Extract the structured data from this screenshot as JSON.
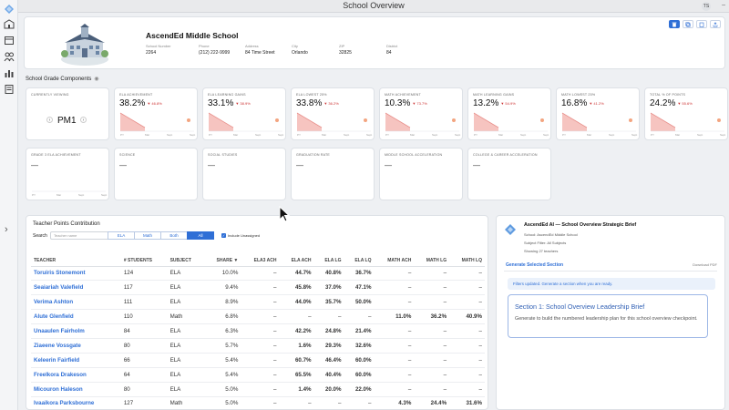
{
  "window": {
    "title": "School Overview",
    "avatar_initials": "TS"
  },
  "school": {
    "name": "AscendEd Middle School",
    "meta": [
      {
        "label": "School Number",
        "value": "2264"
      },
      {
        "label": "Phone",
        "value": "(212) 222-9999"
      },
      {
        "label": "Address",
        "value": "84 Time Street"
      },
      {
        "label": "City",
        "value": "Orlando"
      },
      {
        "label": "ZIP",
        "value": "32825"
      },
      {
        "label": "District",
        "value": "84"
      }
    ]
  },
  "toolbar": {
    "icons": [
      "trash-icon",
      "copy-icon",
      "clipboard-icon",
      "share-icon"
    ]
  },
  "components": {
    "section_title": "School Grade Components",
    "currently_viewing": {
      "label": "CURRENTLY VIEWING",
      "value": "PM1"
    },
    "metrics": [
      {
        "label": "ELA ACHIEVEMENT",
        "value": "38.2%",
        "change": "▼ 46.8%"
      },
      {
        "label": "ELA LEARNING GAINS",
        "value": "33.1%",
        "change": "▼ 38.9%"
      },
      {
        "label": "ELA LOWEST 25%",
        "value": "33.8%",
        "change": "▼ 36.2%"
      },
      {
        "label": "MATH ACHIEVEMENT",
        "value": "10.3%",
        "change": "▼ 73.7%"
      },
      {
        "label": "MATH LEARNING GAINS",
        "value": "13.2%",
        "change": "▼ 54.9%"
      },
      {
        "label": "MATH LOWEST 25%",
        "value": "16.8%",
        "change": "▼ 41.2%"
      },
      {
        "label": "TOTAL % OF POINTS",
        "value": "24.2%",
        "change": "▼ 55.6%"
      }
    ],
    "metrics_row2": [
      {
        "label": "GRADE 3 ELA ACHIEVEMENT",
        "value": "—",
        "has_chart": true
      },
      {
        "label": "SCIENCE",
        "value": "—",
        "has_chart": false
      },
      {
        "label": "SOCIAL STUDIES",
        "value": "—",
        "has_chart": false
      },
      {
        "label": "GRADUATION RATE",
        "value": "—",
        "has_chart": false
      },
      {
        "label": "MIDDLE SCHOOL ACCELERATION",
        "value": "—",
        "has_chart": false
      },
      {
        "label": "COLLEGE & CAREER ACCELERATION",
        "value": "—",
        "has_chart": false
      }
    ],
    "axis_labels": [
      "PY",
      "Mar",
      "Sept",
      "Sept"
    ]
  },
  "teacher_points": {
    "title": "Teacher Points Contribution",
    "search_label": "Search",
    "search_placeholder": "Teacher name",
    "filters": [
      "ELA",
      "Math",
      "Both",
      "All"
    ],
    "active_filter": "All",
    "include_unassigned": "Include Unassigned",
    "columns": [
      "TEACHER",
      "# STUDENTS",
      "SUBJECT",
      "SHARE ▼",
      "ELA3 ACH",
      "ELA ACH",
      "ELA LG",
      "ELA LQ",
      "MATH ACH",
      "MATH LG",
      "MATH LQ"
    ],
    "rows": [
      [
        "Toruiris Stonemont",
        "124",
        "ELA",
        "10.0%",
        "–",
        "44.7%",
        "40.8%",
        "36.7%",
        "–",
        "–",
        "–"
      ],
      [
        "Seaiariah Valefield",
        "117",
        "ELA",
        "9.4%",
        "–",
        "45.8%",
        "37.0%",
        "47.1%",
        "–",
        "–",
        "–"
      ],
      [
        "Verima Ashton",
        "111",
        "ELA",
        "8.9%",
        "–",
        "44.0%",
        "35.7%",
        "50.0%",
        "–",
        "–",
        "–"
      ],
      [
        "Alute Glenfield",
        "110",
        "Math",
        "6.8%",
        "–",
        "–",
        "–",
        "–",
        "11.0%",
        "36.2%",
        "40.9%"
      ],
      [
        "Unaaulen Fairholm",
        "84",
        "ELA",
        "6.3%",
        "–",
        "42.2%",
        "24.8%",
        "21.4%",
        "–",
        "–",
        "–"
      ],
      [
        "Ziaeene Vossgate",
        "80",
        "ELA",
        "5.7%",
        "–",
        "1.6%",
        "29.3%",
        "32.6%",
        "–",
        "–",
        "–"
      ],
      [
        "Keleerin Fairfield",
        "66",
        "ELA",
        "5.4%",
        "–",
        "60.7%",
        "46.4%",
        "60.0%",
        "–",
        "–",
        "–"
      ],
      [
        "Freelkora Drakeson",
        "64",
        "ELA",
        "5.4%",
        "–",
        "65.5%",
        "40.4%",
        "60.0%",
        "–",
        "–",
        "–"
      ],
      [
        "Micouron Haleson",
        "80",
        "ELA",
        "5.0%",
        "–",
        "1.4%",
        "20.0%",
        "22.0%",
        "–",
        "–",
        "–"
      ],
      [
        "Ivaaikora Parksbourne",
        "127",
        "Math",
        "5.0%",
        "–",
        "–",
        "–",
        "–",
        "4.3%",
        "24.4%",
        "31.6%"
      ]
    ],
    "tones": [
      [
        "",
        "",
        "",
        "",
        "n",
        "p",
        "p",
        "p",
        "n",
        "n",
        "n"
      ],
      [
        "",
        "",
        "",
        "",
        "n",
        "p",
        "p",
        "p",
        "n",
        "n",
        "n"
      ],
      [
        "",
        "",
        "",
        "",
        "n",
        "p",
        "p",
        "p",
        "n",
        "n",
        "n"
      ],
      [
        "",
        "",
        "",
        "",
        "n",
        "n",
        "n",
        "n",
        "p",
        "p",
        "p"
      ],
      [
        "",
        "",
        "",
        "",
        "n",
        "p",
        "r",
        "r",
        "n",
        "n",
        "n"
      ],
      [
        "",
        "",
        "",
        "",
        "n",
        "r",
        "r",
        "r",
        "n",
        "n",
        "n"
      ],
      [
        "",
        "",
        "",
        "",
        "n",
        "p",
        "p",
        "p",
        "n",
        "n",
        "n"
      ],
      [
        "",
        "",
        "",
        "",
        "n",
        "p",
        "p",
        "p",
        "n",
        "n",
        "n"
      ],
      [
        "",
        "",
        "",
        "",
        "n",
        "r",
        "r",
        "r",
        "n",
        "n",
        "n"
      ],
      [
        "",
        "",
        "",
        "",
        "n",
        "n",
        "n",
        "n",
        "r",
        "p",
        "p"
      ]
    ]
  },
  "ai_brief": {
    "title": "AscendEd AI — School Overview Strategic Brief",
    "school_line": "School: AscendEd Middle School",
    "subject_line": "Subject Filter: All Subjects",
    "showing_line": "Showing 27 teachers",
    "generate_label": "Generate Selected Section",
    "download_label": "Download PDF",
    "filters_note": "Filters updated. Generate a section when you are ready.",
    "section_title": "Section 1: School Overview Leadership Brief",
    "section_body": "Generate to build the numbered leadership plan for this school overview checkpoint."
  },
  "colors": {
    "accent": "#2f6fd6",
    "positive": "#2e9a3e",
    "negative": "#d23a3a",
    "chart_fill": "#f6c4c0",
    "chart_dot": "#f3a580"
  }
}
